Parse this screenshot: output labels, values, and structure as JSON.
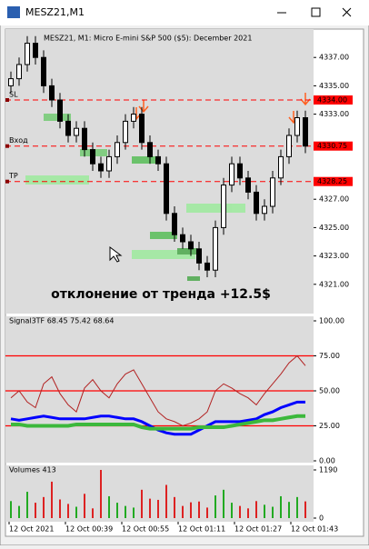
{
  "window": {
    "title": "MESZ21,M1",
    "time_axis": [
      "12 Oct 2021",
      "12 Oct 00:39",
      "12 Oct 00:55",
      "12 Oct 01:11",
      "12 Oct 01:27",
      "12 Oct 01:43"
    ],
    "annotation": "отклонение от тренда +12.5$"
  },
  "chart_data": [
    {
      "type": "candlestick",
      "title": "MESZ21, M1:  Micro E-mini S&P 500 ($5): December 2021",
      "up_color": "#000000",
      "down_color": "#000000",
      "open": [
        4335,
        4335.5,
        4336.5,
        4338,
        4337,
        4335,
        4334,
        4332.5,
        4331.5,
        4332,
        4330.5,
        4329.5,
        4329,
        4330,
        4331,
        4332.5,
        4333,
        4331,
        4330,
        4329.5,
        4326,
        4324.5,
        4324,
        4323.5,
        4322.5,
        4322,
        4325,
        4328,
        4329.5,
        4328.5,
        4327.5,
        4326,
        4326.5,
        4328.5,
        4330,
        4331.5,
        4332.75
      ],
      "high": [
        4336,
        4337,
        4338.5,
        4338.5,
        4337.5,
        4335.5,
        4334.5,
        4333,
        4332.5,
        4332.5,
        4331,
        4330,
        4330.5,
        4331.5,
        4333,
        4333.5,
        4333.5,
        4331.5,
        4330.5,
        4330,
        4326.5,
        4325,
        4324.5,
        4324,
        4323,
        4325.5,
        4328.5,
        4330,
        4330,
        4329,
        4328,
        4327,
        4329,
        4330.5,
        4332,
        4333.25,
        4333.25
      ],
      "low": [
        4334.5,
        4335,
        4336,
        4336.5,
        4334.5,
        4333.5,
        4332,
        4331,
        4331,
        4330,
        4329,
        4328.5,
        4328.5,
        4329.5,
        4330.5,
        4332,
        4330.5,
        4329.5,
        4329,
        4325.5,
        4324,
        4323.5,
        4323,
        4322,
        4321.5,
        4321.5,
        4324.5,
        4327.5,
        4328,
        4327,
        4325.5,
        4325.5,
        4326,
        4328,
        4329.5,
        4331,
        4330.25
      ],
      "close": [
        4335.5,
        4336.5,
        4338,
        4337,
        4335,
        4334,
        4332.5,
        4331.5,
        4332,
        4330.5,
        4329.5,
        4329,
        4330,
        4331,
        4332.5,
        4333,
        4331,
        4330,
        4329.5,
        4326,
        4324.5,
        4324,
        4323.5,
        4322.5,
        4322,
        4325,
        4328,
        4329.5,
        4328.5,
        4327.5,
        4326,
        4326.5,
        4328.5,
        4330,
        4331.5,
        4332.75,
        4330.75
      ],
      "ylim": [
        4319,
        4339
      ],
      "yticks": [
        {
          "value": 4337,
          "label": "4337.00"
        },
        {
          "value": 4335,
          "label": "4335.00"
        },
        {
          "value": 4333,
          "label": "4333.00"
        },
        {
          "value": 4327,
          "label": "4327.00"
        },
        {
          "value": 4325,
          "label": "4325.00"
        },
        {
          "value": 4323,
          "label": "4323.00"
        },
        {
          "value": 4321,
          "label": "4321.00"
        }
      ],
      "levels": [
        {
          "name": "SL",
          "value": 4334,
          "value_label": "4334.00",
          "color": "#ff0000"
        },
        {
          "name": "Вход",
          "value": 4330.75,
          "value_label": "4330.75",
          "color": "#ff0000"
        },
        {
          "name": "TP",
          "value": 4328.25,
          "value_label": "4328.25",
          "color": "#ff0000"
        }
      ]
    },
    {
      "type": "line",
      "title": "Signal3TF 68.45 75.42 68.64",
      "ylim": [
        0,
        100
      ],
      "yticks": [
        {
          "value": 100,
          "label": "100.00"
        },
        {
          "value": 75,
          "label": "75.00"
        },
        {
          "value": 50,
          "label": "50.00"
        },
        {
          "value": 25,
          "label": "25.00"
        },
        {
          "value": 0,
          "label": "0.00"
        }
      ],
      "levels": [
        {
          "value": 75,
          "color": "#ff0000"
        },
        {
          "value": 50,
          "color": "#ff0000"
        },
        {
          "value": 25,
          "color": "#ff0000"
        }
      ],
      "series": [
        {
          "color": "#b22222",
          "width": 1,
          "values": [
            45,
            50,
            42,
            38,
            55,
            60,
            48,
            40,
            35,
            52,
            58,
            50,
            45,
            55,
            62,
            65,
            55,
            45,
            35,
            30,
            28,
            25,
            27,
            30,
            35,
            50,
            55,
            52,
            48,
            45,
            40,
            48,
            55,
            62,
            70,
            75,
            68
          ]
        },
        {
          "color": "#0000ff",
          "width": 3,
          "values": [
            30,
            29,
            30,
            31,
            32,
            31,
            30,
            30,
            30,
            30,
            31,
            32,
            32,
            31,
            30,
            30,
            28,
            25,
            22,
            20,
            19,
            19,
            19,
            22,
            25,
            28,
            28,
            28,
            28,
            29,
            30,
            33,
            35,
            38,
            40,
            42,
            42
          ]
        },
        {
          "color": "#3cb83c",
          "width": 4,
          "values": [
            26,
            26,
            25,
            25,
            25,
            25,
            25,
            25,
            26,
            26,
            26,
            26,
            26,
            26,
            26,
            26,
            24,
            23,
            23,
            23,
            23,
            23,
            23,
            24,
            24,
            24,
            24,
            25,
            26,
            27,
            28,
            29,
            29,
            30,
            31,
            32,
            32
          ]
        }
      ]
    },
    {
      "type": "bar",
      "title": "Volumes 413",
      "ylim": [
        0,
        1190
      ],
      "yticks": [
        1190,
        0
      ],
      "up_color": "#22aa22",
      "down_color": "#dd2222",
      "values": [
        420,
        300,
        650,
        380,
        520,
        900,
        460,
        350,
        280,
        600,
        240,
        1190,
        540,
        380,
        300,
        260,
        700,
        480,
        450,
        820,
        520,
        300,
        390,
        410,
        260,
        560,
        700,
        380,
        300,
        240,
        420,
        330,
        280,
        540,
        400,
        520,
        413
      ]
    }
  ]
}
